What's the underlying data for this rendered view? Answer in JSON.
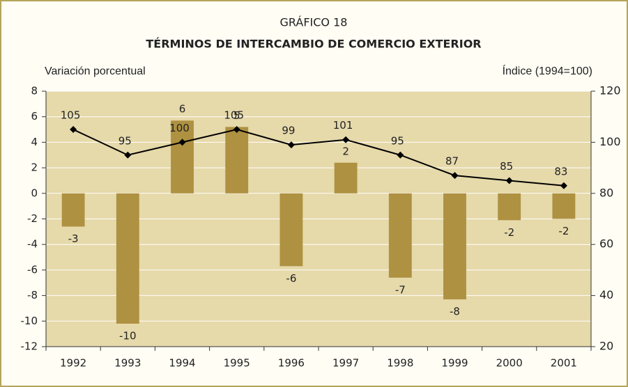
{
  "chart_data": {
    "type": "bar_line",
    "subtitle": "GRÁFICO 18",
    "title": "TÉRMINOS DE INTERCAMBIO DE COMERCIO EXTERIOR",
    "y_label": "Variación porcentual",
    "y2_label": "Índice (1994=100)",
    "categories": [
      "1992",
      "1993",
      "1994",
      "1995",
      "1996",
      "1997",
      "1998",
      "1999",
      "2000",
      "2001"
    ],
    "series": [
      {
        "type": "bar",
        "color": "#ae9141",
        "values": [
          -2.6,
          -10.2,
          5.7,
          5.2,
          -5.7,
          2.4,
          -6.6,
          -8.3,
          -2.1,
          -2.0
        ],
        "value_labels": [
          "-3",
          "-10",
          "6",
          "5",
          "-6",
          "2",
          "-7",
          "-8",
          "-2",
          "-2"
        ]
      },
      {
        "type": "line",
        "axis": "y2",
        "color": "#000000",
        "values": [
          105,
          95,
          100,
          105,
          99,
          101,
          95,
          87,
          85,
          83
        ]
      }
    ],
    "ylim": [
      -12,
      8
    ],
    "yticks": [
      -12,
      -10,
      -8,
      -6,
      -4,
      -2,
      0,
      2,
      4,
      6,
      8
    ],
    "y2lim": [
      20,
      120
    ],
    "y2ticks": [
      20,
      40,
      60,
      80,
      100,
      120
    ],
    "grid": true
  }
}
